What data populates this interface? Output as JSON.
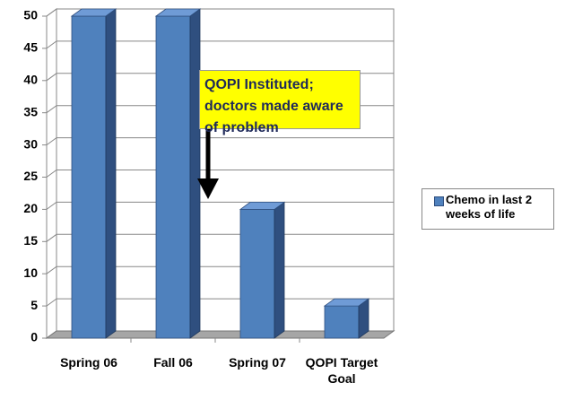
{
  "chart_data": {
    "type": "bar3d",
    "categories": [
      "Spring 06",
      "Fall 06",
      "Spring 07",
      "QOPI Target Goal"
    ],
    "series": [
      {
        "name": "Chemo in last 2 weeks of life",
        "color": "#4f81bd",
        "values": [
          50,
          50,
          20,
          5
        ]
      }
    ],
    "ylim": [
      0,
      50
    ],
    "yticks": [
      0,
      5,
      10,
      15,
      20,
      25,
      30,
      35,
      40,
      45,
      50
    ],
    "grid": true,
    "annotation": "QOPI Instituted; doctors made aware of problem"
  }
}
